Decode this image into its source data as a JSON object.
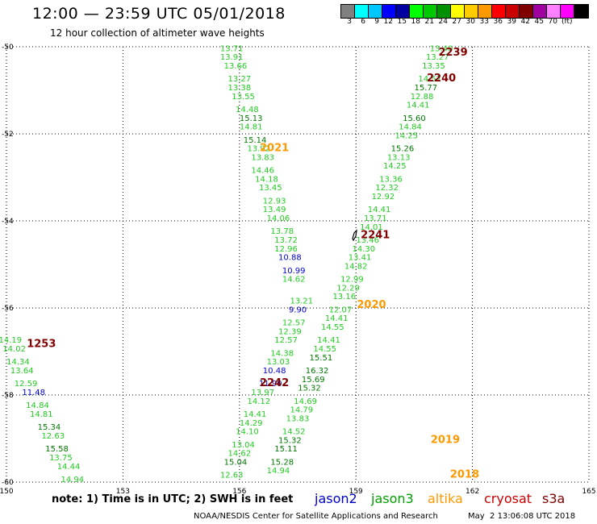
{
  "header": {
    "title": "12:00 — 23:59 UTC 05/01/2018",
    "subtitle": "12 hour collection of altimeter wave heights"
  },
  "legend": {
    "colors": [
      "#808080",
      "#00ffff",
      "#00c8ff",
      "#0000ff",
      "#0000a0",
      "#00ff00",
      "#00c800",
      "#009000",
      "#ffff00",
      "#ffcc00",
      "#ff9900",
      "#ff0000",
      "#c80000",
      "#800000",
      "#a000a0",
      "#ff80ff",
      "#ff00ff",
      "#000000"
    ],
    "labels": [
      "3",
      "6",
      "9",
      "12",
      "15",
      "18",
      "21",
      "24",
      "27",
      "30",
      "33",
      "36",
      "39",
      "42",
      "45",
      "70",
      "(ft)"
    ]
  },
  "axes": {
    "x_ticks": [
      "150",
      "153",
      "156",
      "159",
      "162",
      "165"
    ],
    "y_ticks": [
      "-50",
      "-52",
      "-54",
      "-56",
      "-58",
      "-60"
    ]
  },
  "chart_data": {
    "type": "scatter",
    "x_range": [
      150,
      165
    ],
    "y_range": [
      -60,
      -50
    ],
    "grid": true,
    "tracks": [
      {
        "name": "track-a",
        "points": [
          {
            "lon": 155.8,
            "lat": -50.1,
            "v": "13.71",
            "c": "#22cc22"
          },
          {
            "lon": 155.8,
            "lat": -50.3,
            "v": "13.91",
            "c": "#22cc22"
          },
          {
            "lon": 155.9,
            "lat": -50.5,
            "v": "13.66",
            "c": "#22cc22"
          },
          {
            "lon": 156.0,
            "lat": -50.8,
            "v": "13.27",
            "c": "#22cc22"
          },
          {
            "lon": 156.0,
            "lat": -51.0,
            "v": "13.38",
            "c": "#22cc22"
          },
          {
            "lon": 156.1,
            "lat": -51.2,
            "v": "13.55",
            "c": "#22cc22"
          },
          {
            "lon": 156.2,
            "lat": -51.5,
            "v": "14.48",
            "c": "#22cc22"
          },
          {
            "lon": 156.3,
            "lat": -51.7,
            "v": "15.13",
            "c": "#007a00"
          },
          {
            "lon": 156.3,
            "lat": -51.9,
            "v": "14.81",
            "c": "#22cc22"
          },
          {
            "lon": 156.4,
            "lat": -52.2,
            "v": "15.14",
            "c": "#007a00"
          },
          {
            "lon": 156.5,
            "lat": -52.4,
            "v": "13.92",
            "c": "#22cc22"
          },
          {
            "lon": 156.6,
            "lat": -52.6,
            "v": "13.83",
            "c": "#22cc22"
          },
          {
            "lon": 156.6,
            "lat": -52.9,
            "v": "14.46",
            "c": "#22cc22"
          },
          {
            "lon": 156.7,
            "lat": -53.1,
            "v": "14.18",
            "c": "#22cc22"
          },
          {
            "lon": 156.8,
            "lat": -53.3,
            "v": "13.45",
            "c": "#22cc22"
          },
          {
            "lon": 156.9,
            "lat": -53.6,
            "v": "12.93",
            "c": "#22cc22"
          },
          {
            "lon": 156.9,
            "lat": -53.8,
            "v": "13.49",
            "c": "#22cc22"
          },
          {
            "lon": 157.0,
            "lat": -54.0,
            "v": "14.06",
            "c": "#22cc22"
          },
          {
            "lon": 157.1,
            "lat": -54.3,
            "v": "13.78",
            "c": "#22cc22"
          },
          {
            "lon": 157.2,
            "lat": -54.5,
            "v": "13.72",
            "c": "#22cc22"
          },
          {
            "lon": 157.2,
            "lat": -54.7,
            "v": "12.96",
            "c": "#22cc22"
          },
          {
            "lon": 157.3,
            "lat": -54.9,
            "v": "10.88",
            "c": "#0000cc"
          },
          {
            "lon": 157.4,
            "lat": -55.2,
            "v": "10.99",
            "c": "#0000cc"
          },
          {
            "lon": 157.4,
            "lat": -55.4,
            "v": "14.62",
            "c": "#22cc22"
          }
        ]
      },
      {
        "name": "track-b",
        "points": [
          {
            "lon": 161.2,
            "lat": -50.1,
            "v": "13.40",
            "c": "#22cc22"
          },
          {
            "lon": 161.1,
            "lat": -50.3,
            "v": "13.27",
            "c": "#22cc22"
          },
          {
            "lon": 161.0,
            "lat": -50.5,
            "v": "13.35",
            "c": "#22cc22"
          },
          {
            "lon": 160.9,
            "lat": -50.8,
            "v": "14.57",
            "c": "#22cc22"
          },
          {
            "lon": 160.8,
            "lat": -51.0,
            "v": "15.77",
            "c": "#007a00"
          },
          {
            "lon": 160.7,
            "lat": -51.2,
            "v": "12.88",
            "c": "#22cc22"
          },
          {
            "lon": 160.6,
            "lat": -51.4,
            "v": "14.41",
            "c": "#22cc22"
          },
          {
            "lon": 160.5,
            "lat": -51.7,
            "v": "15.60",
            "c": "#007a00"
          },
          {
            "lon": 160.4,
            "lat": -51.9,
            "v": "14.84",
            "c": "#22cc22"
          },
          {
            "lon": 160.3,
            "lat": -52.1,
            "v": "14.25",
            "c": "#22cc22"
          },
          {
            "lon": 160.2,
            "lat": -52.4,
            "v": "15.26",
            "c": "#007a00"
          },
          {
            "lon": 160.1,
            "lat": -52.6,
            "v": "13.13",
            "c": "#22cc22"
          },
          {
            "lon": 160.0,
            "lat": -52.8,
            "v": "14.25",
            "c": "#22cc22"
          },
          {
            "lon": 159.9,
            "lat": -53.1,
            "v": "13.36",
            "c": "#22cc22"
          },
          {
            "lon": 159.8,
            "lat": -53.3,
            "v": "12.32",
            "c": "#22cc22"
          },
          {
            "lon": 159.7,
            "lat": -53.5,
            "v": "12.92",
            "c": "#22cc22"
          },
          {
            "lon": 159.6,
            "lat": -53.8,
            "v": "14.41",
            "c": "#22cc22"
          },
          {
            "lon": 159.5,
            "lat": -54.0,
            "v": "13.71",
            "c": "#22cc22"
          },
          {
            "lon": 159.4,
            "lat": -54.2,
            "v": "14.01",
            "c": "#22cc22"
          },
          {
            "lon": 159.3,
            "lat": -54.5,
            "v": "13.46",
            "c": "#22cc22"
          },
          {
            "lon": 159.2,
            "lat": -54.7,
            "v": "14.30",
            "c": "#22cc22"
          },
          {
            "lon": 159.1,
            "lat": -54.9,
            "v": "13.41",
            "c": "#22cc22"
          },
          {
            "lon": 159.0,
            "lat": -55.1,
            "v": "14.82",
            "c": "#22cc22"
          },
          {
            "lon": 158.9,
            "lat": -55.4,
            "v": "12.99",
            "c": "#22cc22"
          },
          {
            "lon": 158.8,
            "lat": -55.6,
            "v": "12.29",
            "c": "#22cc22"
          },
          {
            "lon": 158.7,
            "lat": -55.8,
            "v": "13.16",
            "c": "#22cc22"
          },
          {
            "lon": 158.6,
            "lat": -56.1,
            "v": "12.07",
            "c": "#22cc22"
          },
          {
            "lon": 158.5,
            "lat": -56.3,
            "v": "14.41",
            "c": "#22cc22"
          },
          {
            "lon": 158.4,
            "lat": -56.5,
            "v": "14.55",
            "c": "#22cc22"
          },
          {
            "lon": 158.3,
            "lat": -56.8,
            "v": "14.41",
            "c": "#22cc22"
          },
          {
            "lon": 158.2,
            "lat": -57.0,
            "v": "14.55",
            "c": "#22cc22"
          },
          {
            "lon": 158.1,
            "lat": -57.2,
            "v": "15.51",
            "c": "#007a00"
          },
          {
            "lon": 158.0,
            "lat": -57.5,
            "v": "16.32",
            "c": "#007a00"
          },
          {
            "lon": 157.9,
            "lat": -57.7,
            "v": "15.69",
            "c": "#007a00"
          },
          {
            "lon": 157.8,
            "lat": -57.9,
            "v": "15.32",
            "c": "#007a00"
          },
          {
            "lon": 157.7,
            "lat": -58.2,
            "v": "14.69",
            "c": "#22cc22"
          },
          {
            "lon": 157.6,
            "lat": -58.4,
            "v": "14.79",
            "c": "#22cc22"
          },
          {
            "lon": 157.5,
            "lat": -58.6,
            "v": "13.83",
            "c": "#22cc22"
          },
          {
            "lon": 157.4,
            "lat": -58.9,
            "v": "14.52",
            "c": "#22cc22"
          },
          {
            "lon": 157.3,
            "lat": -59.1,
            "v": "15.32",
            "c": "#007a00"
          },
          {
            "lon": 157.2,
            "lat": -59.3,
            "v": "15.11",
            "c": "#007a00"
          },
          {
            "lon": 157.1,
            "lat": -59.6,
            "v": "15.28",
            "c": "#007a00"
          },
          {
            "lon": 157.0,
            "lat": -59.8,
            "v": "14.94",
            "c": "#22cc22"
          }
        ]
      },
      {
        "name": "track-c",
        "points": [
          {
            "lon": 157.6,
            "lat": -55.9,
            "v": "13.21",
            "c": "#22cc22"
          },
          {
            "lon": 157.5,
            "lat": -56.1,
            "v": "9.90",
            "c": "#0000cc"
          },
          {
            "lon": 157.4,
            "lat": -56.4,
            "v": "12.57",
            "c": "#22cc22"
          },
          {
            "lon": 157.3,
            "lat": -56.6,
            "v": "12.39",
            "c": "#22cc22"
          },
          {
            "lon": 157.2,
            "lat": -56.8,
            "v": "12.57",
            "c": "#22cc22"
          },
          {
            "lon": 157.1,
            "lat": -57.1,
            "v": "14.38",
            "c": "#22cc22"
          },
          {
            "lon": 157.0,
            "lat": -57.3,
            "v": "13.03",
            "c": "#22cc22"
          },
          {
            "lon": 156.9,
            "lat": -57.5,
            "v": "10.48",
            "c": "#0000cc"
          },
          {
            "lon": 156.8,
            "lat": -57.8,
            "v": "11.90",
            "c": "#0000cc"
          },
          {
            "lon": 156.6,
            "lat": -58.0,
            "v": "13.97",
            "c": "#22cc22"
          },
          {
            "lon": 156.5,
            "lat": -58.2,
            "v": "14.12",
            "c": "#22cc22"
          },
          {
            "lon": 156.4,
            "lat": -58.5,
            "v": "14.41",
            "c": "#22cc22"
          },
          {
            "lon": 156.3,
            "lat": -58.7,
            "v": "14.29",
            "c": "#22cc22"
          },
          {
            "lon": 156.2,
            "lat": -58.9,
            "v": "14.10",
            "c": "#22cc22"
          },
          {
            "lon": 156.1,
            "lat": -59.2,
            "v": "13.04",
            "c": "#22cc22"
          },
          {
            "lon": 156.0,
            "lat": -59.4,
            "v": "14.62",
            "c": "#22cc22"
          },
          {
            "lon": 155.9,
            "lat": -59.6,
            "v": "15.04",
            "c": "#007a00"
          },
          {
            "lon": 155.8,
            "lat": -59.9,
            "v": "12.63",
            "c": "#22cc22"
          }
        ]
      },
      {
        "name": "track-d",
        "points": [
          {
            "lon": 150.1,
            "lat": -56.8,
            "v": "14.19",
            "c": "#22cc22"
          },
          {
            "lon": 150.2,
            "lat": -57.0,
            "v": "14.02",
            "c": "#22cc22"
          },
          {
            "lon": 150.3,
            "lat": -57.3,
            "v": "14.34",
            "c": "#22cc22"
          },
          {
            "lon": 150.4,
            "lat": -57.5,
            "v": "13.64",
            "c": "#22cc22"
          },
          {
            "lon": 150.5,
            "lat": -57.8,
            "v": "12.59",
            "c": "#22cc22"
          },
          {
            "lon": 150.7,
            "lat": -58.0,
            "v": "11.48",
            "c": "#0000cc"
          },
          {
            "lon": 150.8,
            "lat": -58.3,
            "v": "14.84",
            "c": "#22cc22"
          },
          {
            "lon": 150.9,
            "lat": -58.5,
            "v": "14.81",
            "c": "#22cc22"
          },
          {
            "lon": 151.1,
            "lat": -58.8,
            "v": "15.34",
            "c": "#007a00"
          },
          {
            "lon": 151.2,
            "lat": -59.0,
            "v": "12.63",
            "c": "#22cc22"
          },
          {
            "lon": 151.3,
            "lat": -59.3,
            "v": "15.58",
            "c": "#007a00"
          },
          {
            "lon": 151.4,
            "lat": -59.5,
            "v": "13.75",
            "c": "#22cc22"
          },
          {
            "lon": 151.6,
            "lat": -59.7,
            "v": "14.44",
            "c": "#22cc22"
          },
          {
            "lon": 151.7,
            "lat": -60.0,
            "v": "14.94",
            "c": "#22cc22"
          }
        ]
      }
    ],
    "time_labels": [
      {
        "lon": 161.5,
        "lat": -50.2,
        "t": "2239",
        "c": "#800000"
      },
      {
        "lon": 161.2,
        "lat": -50.8,
        "t": "2240",
        "c": "#800000"
      },
      {
        "lon": 156.9,
        "lat": -52.4,
        "t": "2021",
        "c": "#ff9900"
      },
      {
        "lon": 159.5,
        "lat": -54.4,
        "t": "2241",
        "c": "#800000"
      },
      {
        "lon": 159.4,
        "lat": -56.0,
        "t": "2020",
        "c": "#ff9900"
      },
      {
        "lon": 150.9,
        "lat": -56.9,
        "t": "1253",
        "c": "#800000"
      },
      {
        "lon": 156.9,
        "lat": -57.8,
        "t": "2242",
        "c": "#800000"
      },
      {
        "lon": 161.3,
        "lat": -59.1,
        "t": "2019",
        "c": "#ff9900"
      },
      {
        "lon": 161.8,
        "lat": -59.9,
        "t": "2018",
        "c": "#ff9900"
      }
    ]
  },
  "footer": {
    "note": "note: 1) Time is in UTC; 2) SWH is in feet",
    "satellites": {
      "jason2": "jason2",
      "jason3": "jason3",
      "altika": "altika",
      "cryosat": "cryosat",
      "s3a": "s3a"
    },
    "credit": "NOAA/NESDIS Center for Satellite Applications and Research",
    "timestamp": "May  2 13:06:08 UTC 2018"
  }
}
